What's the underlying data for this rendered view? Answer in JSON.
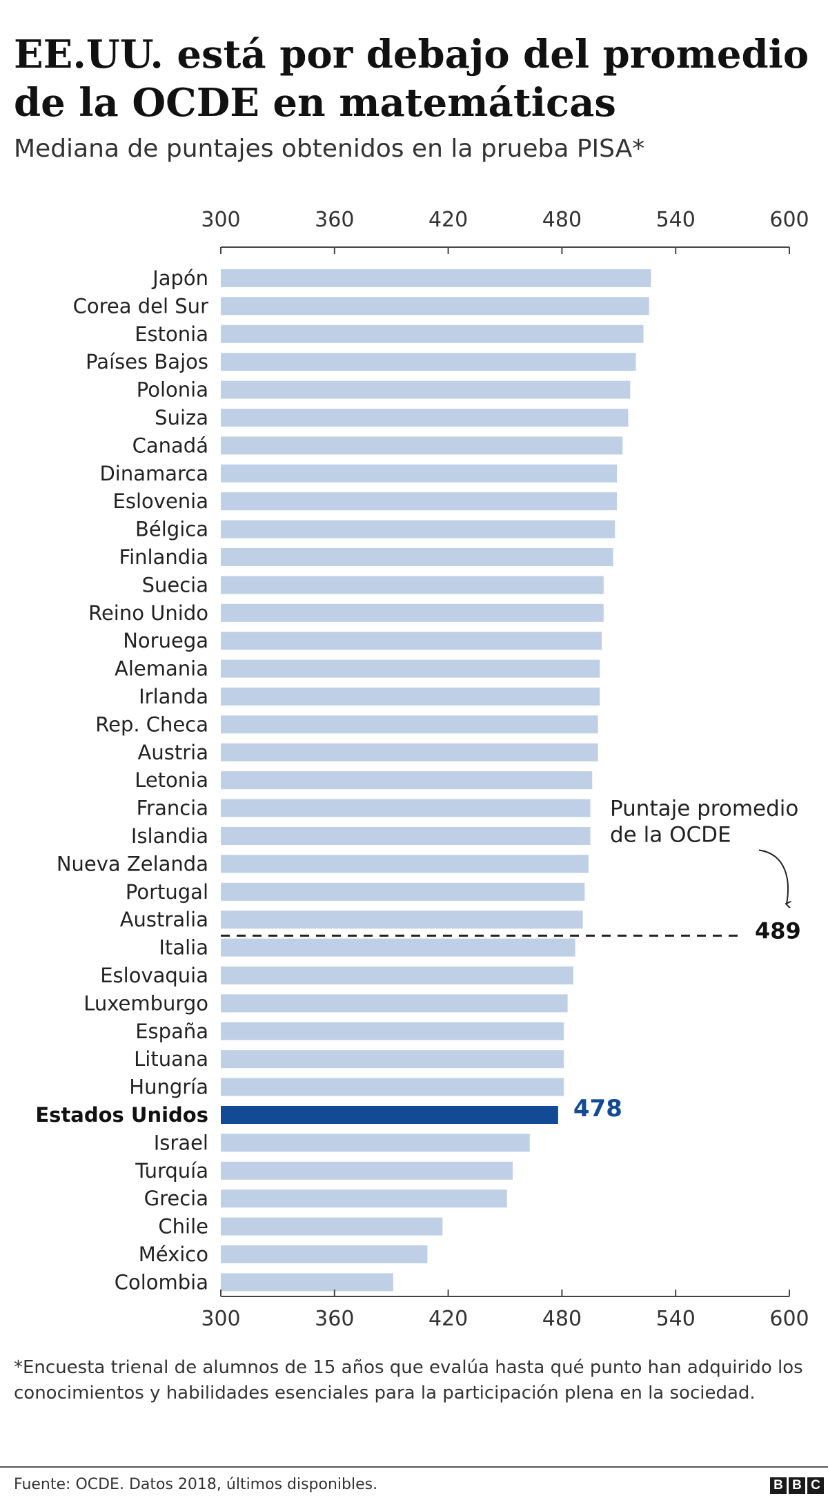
{
  "header": {
    "title": "EE.UU. está por debajo del promedio de la OCDE en matemáticas",
    "subtitle": "Mediana de puntajes obtenidos en la prueba PISA*"
  },
  "chart_data": {
    "type": "bar",
    "orientation": "horizontal",
    "xlim": [
      300,
      600
    ],
    "xticks": [
      300,
      360,
      420,
      480,
      540,
      600
    ],
    "xtick_labels": [
      "300",
      "360",
      "420",
      "480",
      "540",
      "600"
    ],
    "categories": [
      "Japón",
      "Corea del Sur",
      "Estonia",
      "Países Bajos",
      "Polonia",
      "Suiza",
      "Canadá",
      "Dinamarca",
      "Eslovenia",
      "Bélgica",
      "Finlandia",
      "Suecia",
      "Reino Unido",
      "Noruega",
      "Alemania",
      "Irlanda",
      "Rep. Checa",
      "Austria",
      "Letonia",
      "Francia",
      "Islandia",
      "Nueva Zelanda",
      "Portugal",
      "Australia",
      "Italia",
      "Eslovaquia",
      "Luxemburgo",
      "España",
      "Lituana",
      "Hungría",
      "Estados Unidos",
      "Israel",
      "Turquía",
      "Grecia",
      "Chile",
      "México",
      "Colombia"
    ],
    "values": [
      527,
      526,
      523,
      519,
      516,
      515,
      512,
      509,
      509,
      508,
      507,
      502,
      502,
      501,
      500,
      500,
      499,
      499,
      496,
      495,
      495,
      494,
      492,
      491,
      487,
      486,
      483,
      481,
      481,
      481,
      478,
      463,
      454,
      451,
      417,
      409,
      391
    ],
    "highlight": {
      "category": "Estados Unidos",
      "value_label": "478",
      "color": "#134a96"
    },
    "reference_line": {
      "value": 489,
      "label_line1": "Puntaje promedio",
      "label_line2": "de la OCDE",
      "value_label": "489"
    },
    "colors": {
      "bar": "#bfcfe6",
      "highlight": "#134a96",
      "text": "#222222",
      "axis": "#444444"
    },
    "grid": false,
    "legend": "none"
  },
  "footnote": "*Encuesta trienal de alumnos de 15 años que evalúa hasta qué punto han adquirido los conocimientos y habilidades esenciales para la participación plena en la sociedad.",
  "footer": {
    "source": "Fuente: OCDE. Datos 2018, últimos disponibles.",
    "logo_letters": [
      "B",
      "B",
      "C"
    ]
  }
}
